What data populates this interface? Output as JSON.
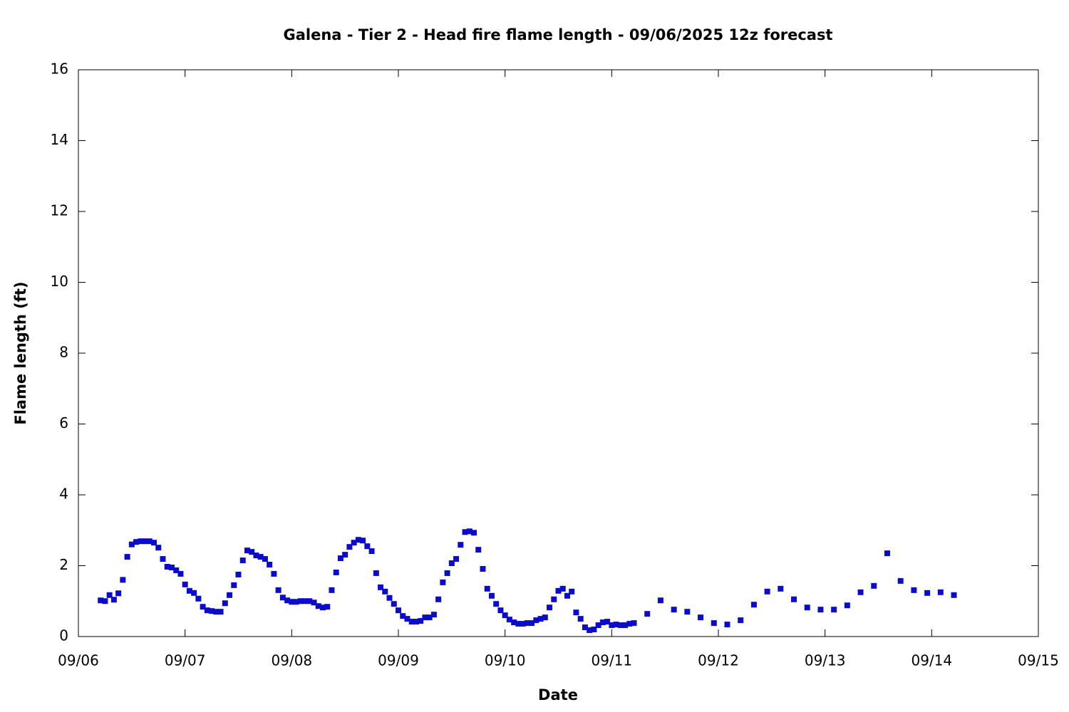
{
  "chart_data": {
    "type": "scatter",
    "title": "Galena - Tier 2 - Head fire flame length - 09/06/2025 12z forecast",
    "xlabel": "Date",
    "ylabel": "Flame length (ft)",
    "xlim": [
      0,
      216
    ],
    "ylim": [
      0,
      16
    ],
    "xticks": [
      {
        "value": 0,
        "label": "09/06"
      },
      {
        "value": 24,
        "label": "09/07"
      },
      {
        "value": 48,
        "label": "09/08"
      },
      {
        "value": 72,
        "label": "09/09"
      },
      {
        "value": 96,
        "label": "09/10"
      },
      {
        "value": 120,
        "label": "09/11"
      },
      {
        "value": 144,
        "label": "09/12"
      },
      {
        "value": 168,
        "label": "09/13"
      },
      {
        "value": 192,
        "label": "09/14"
      },
      {
        "value": 216,
        "label": "09/15"
      }
    ],
    "yticks": [
      0,
      2,
      4,
      6,
      8,
      10,
      12,
      14,
      16
    ],
    "color": "#0b0bcc",
    "x": [
      5,
      6,
      7,
      8,
      9,
      10,
      11,
      12,
      13,
      14,
      15,
      16,
      17,
      18,
      19,
      20,
      21,
      22,
      23,
      24,
      25,
      26,
      27,
      28,
      29,
      30,
      31,
      32,
      33,
      34,
      35,
      36,
      37,
      38,
      39,
      40,
      41,
      42,
      43,
      44,
      45,
      46,
      47,
      48,
      49,
      50,
      51,
      52,
      53,
      54,
      55,
      56,
      57,
      58,
      59,
      60,
      61,
      62,
      63,
      64,
      65,
      66,
      67,
      68,
      69,
      70,
      71,
      72,
      73,
      74,
      75,
      76,
      77,
      78,
      79,
      80,
      81,
      82,
      83,
      84,
      85,
      86,
      87,
      88,
      89,
      90,
      91,
      92,
      93,
      94,
      95,
      96,
      97,
      98,
      99,
      100,
      101,
      102,
      103,
      104,
      105,
      106,
      107,
      108,
      109,
      110,
      111,
      112,
      113,
      114,
      115,
      116,
      117,
      118,
      119,
      120,
      121,
      122,
      123,
      124,
      125,
      128,
      131,
      134,
      137,
      140,
      143,
      146,
      149,
      152,
      155,
      158,
      161,
      164,
      167,
      170,
      173,
      176,
      179,
      182,
      185,
      188,
      191,
      194,
      197
    ],
    "values": [
      1.02,
      1.0,
      1.17,
      1.04,
      1.22,
      1.6,
      2.25,
      2.6,
      2.67,
      2.69,
      2.69,
      2.69,
      2.65,
      2.51,
      2.19,
      1.97,
      1.95,
      1.87,
      1.77,
      1.47,
      1.29,
      1.23,
      1.07,
      0.84,
      0.74,
      0.72,
      0.7,
      0.7,
      0.94,
      1.17,
      1.45,
      1.75,
      2.15,
      2.43,
      2.39,
      2.29,
      2.25,
      2.19,
      2.03,
      1.77,
      1.31,
      1.1,
      1.02,
      0.98,
      0.98,
      1.0,
      1.0,
      1.0,
      0.96,
      0.86,
      0.82,
      0.84,
      1.31,
      1.81,
      2.21,
      2.31,
      2.53,
      2.65,
      2.73,
      2.71,
      2.55,
      2.41,
      1.79,
      1.39,
      1.27,
      1.09,
      0.92,
      0.74,
      0.58,
      0.5,
      0.42,
      0.42,
      0.44,
      0.54,
      0.54,
      0.62,
      1.05,
      1.53,
      1.79,
      2.07,
      2.19,
      2.59,
      2.95,
      2.97,
      2.93,
      2.45,
      1.91,
      1.35,
      1.15,
      0.92,
      0.74,
      0.6,
      0.48,
      0.4,
      0.36,
      0.36,
      0.38,
      0.38,
      0.46,
      0.5,
      0.54,
      0.82,
      1.05,
      1.29,
      1.35,
      1.15,
      1.27,
      0.68,
      0.5,
      0.26,
      0.18,
      0.2,
      0.32,
      0.4,
      0.42,
      0.32,
      0.34,
      0.32,
      0.32,
      0.36,
      0.38,
      0.64,
      1.02,
      0.76,
      0.7,
      0.54,
      0.38,
      0.34,
      0.46,
      0.9,
      1.27,
      1.35,
      1.05,
      0.82,
      0.76,
      0.76,
      0.88,
      1.25,
      1.43,
      2.35,
      1.57,
      1.31,
      1.23,
      1.25,
      1.17
    ]
  }
}
